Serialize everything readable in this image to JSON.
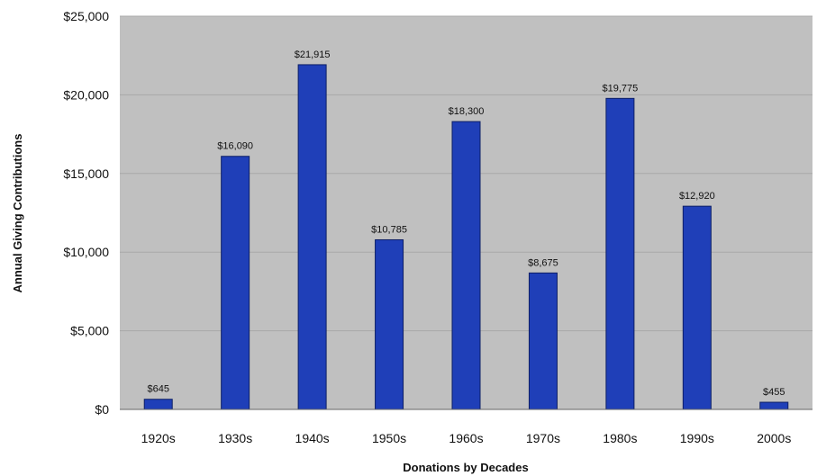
{
  "chart_data": {
    "type": "bar",
    "title": "",
    "xlabel": "Donations by Decades",
    "ylabel": "Annual Giving Contributions",
    "categories": [
      "1920s",
      "1930s",
      "1940s",
      "1950s",
      "1960s",
      "1970s",
      "1980s",
      "1990s",
      "2000s"
    ],
    "series": [
      {
        "name": "",
        "values": [
          645,
          16090,
          21915,
          10785,
          18300,
          8675,
          19775,
          12920,
          455
        ],
        "labels": [
          "$645",
          "$16,090",
          "$21,915",
          "$10,785",
          "$18,300",
          "$8,675",
          "$19,775",
          "$12,920",
          "$455"
        ]
      }
    ],
    "ylim": [
      0,
      25000
    ],
    "yticks": [
      0,
      5000,
      10000,
      15000,
      20000,
      25000
    ],
    "ytick_labels": [
      "$0",
      "$5,000",
      "$10,000",
      "$15,000",
      "$20,000",
      "$25,000"
    ],
    "grid": true,
    "legend": "none",
    "colors": {
      "bar": "#1f3fb8",
      "bar_edge": "#0d1f66",
      "plot_background": "#c0c0c0",
      "gridline": "#a8a8a8"
    }
  }
}
